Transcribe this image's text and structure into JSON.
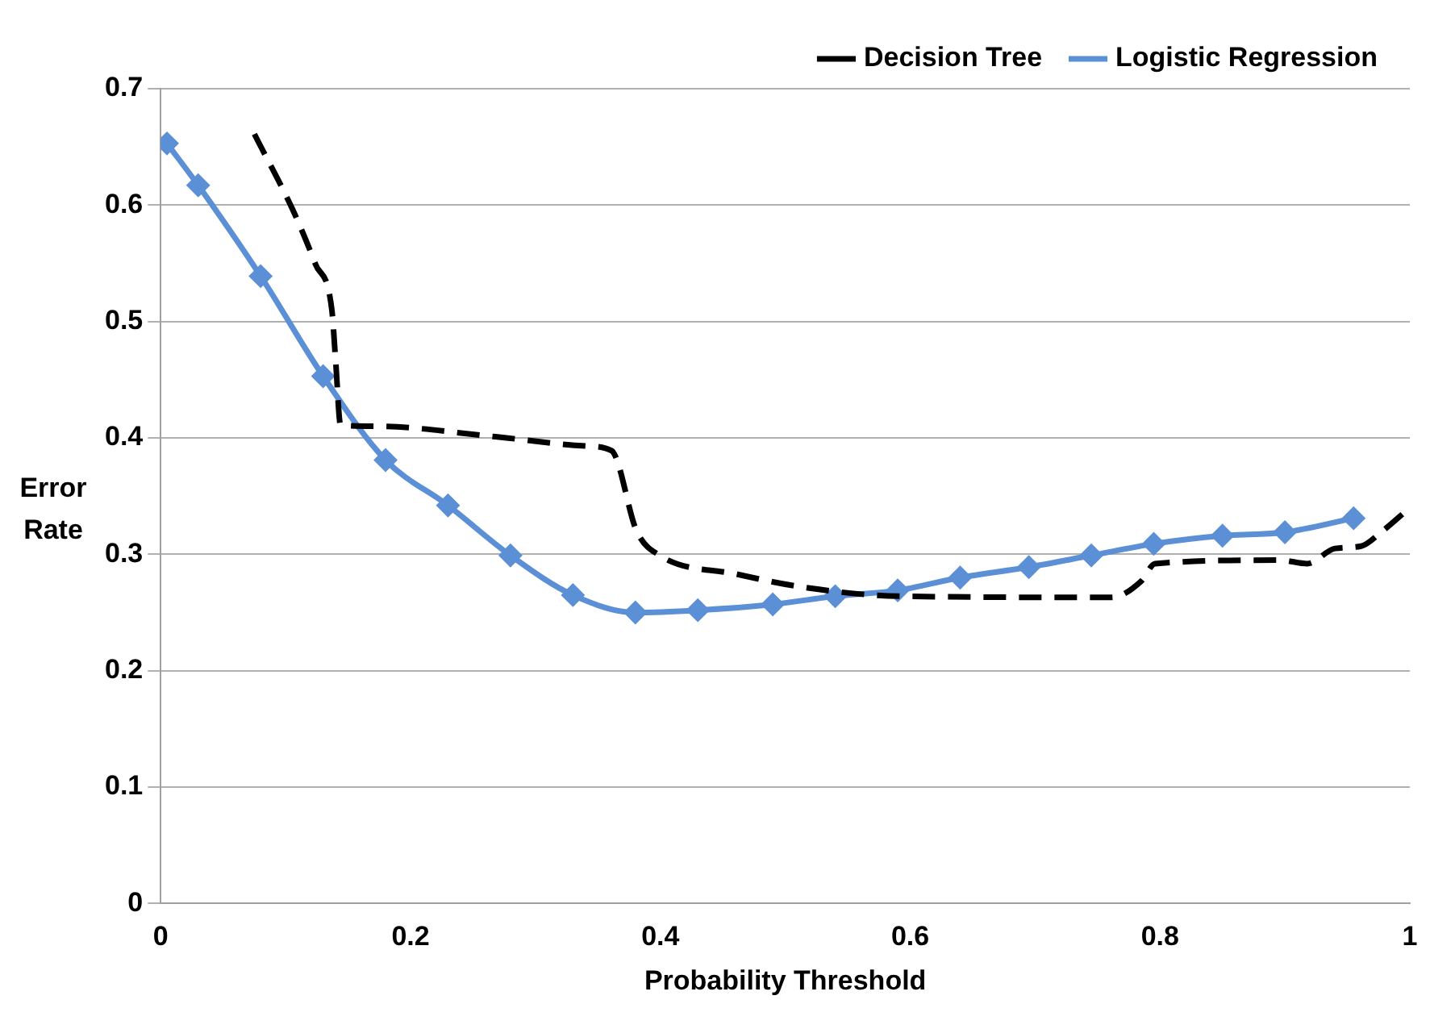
{
  "chart_data": {
    "type": "line",
    "xlabel": "Probability Threshold",
    "ylabel": "Error Rate",
    "xlim": [
      0,
      1
    ],
    "xticks": [
      0,
      0.2,
      0.4,
      0.6,
      0.8,
      1
    ],
    "ylim": [
      0,
      0.7
    ],
    "yticks": [
      0,
      0.1,
      0.2,
      0.3,
      0.4,
      0.5,
      0.6,
      0.7
    ],
    "grid": "y",
    "legend": "top right",
    "series": [
      {
        "name": "Decision Tree",
        "color": "#000000",
        "line_style": "dashed",
        "marker": "none",
        "x": [
          0.075,
          0.107,
          0.124,
          0.137,
          0.14,
          0.144,
          0.172,
          0.268,
          0.341,
          0.361,
          0.381,
          0.398,
          0.461,
          0.513,
          0.591,
          0.761,
          0.785,
          0.796,
          0.896,
          0.918,
          0.94,
          0.961,
          0.977,
          1.0
        ],
        "values": [
          0.661,
          0.593,
          0.549,
          0.51,
          0.467,
          0.411,
          0.41,
          0.401,
          0.393,
          0.389,
          0.32,
          0.3,
          0.283,
          0.272,
          0.264,
          0.263,
          0.277,
          0.292,
          0.295,
          0.292,
          0.305,
          0.307,
          0.319,
          0.34
        ]
      },
      {
        "name": "Logistic Regression",
        "color": "#5b8fd6",
        "line_style": "solid",
        "marker": "diamond",
        "x": [
          0.005,
          0.03,
          0.08,
          0.13,
          0.18,
          0.23,
          0.28,
          0.33,
          0.38,
          0.43,
          0.49,
          0.54,
          0.59,
          0.64,
          0.695,
          0.745,
          0.795,
          0.85,
          0.9,
          0.955
        ],
        "values": [
          0.653,
          0.617,
          0.539,
          0.453,
          0.381,
          0.342,
          0.299,
          0.265,
          0.25,
          0.252,
          0.257,
          0.264,
          0.269,
          0.28,
          0.289,
          0.299,
          0.309,
          0.316,
          0.319,
          0.331
        ]
      }
    ]
  }
}
